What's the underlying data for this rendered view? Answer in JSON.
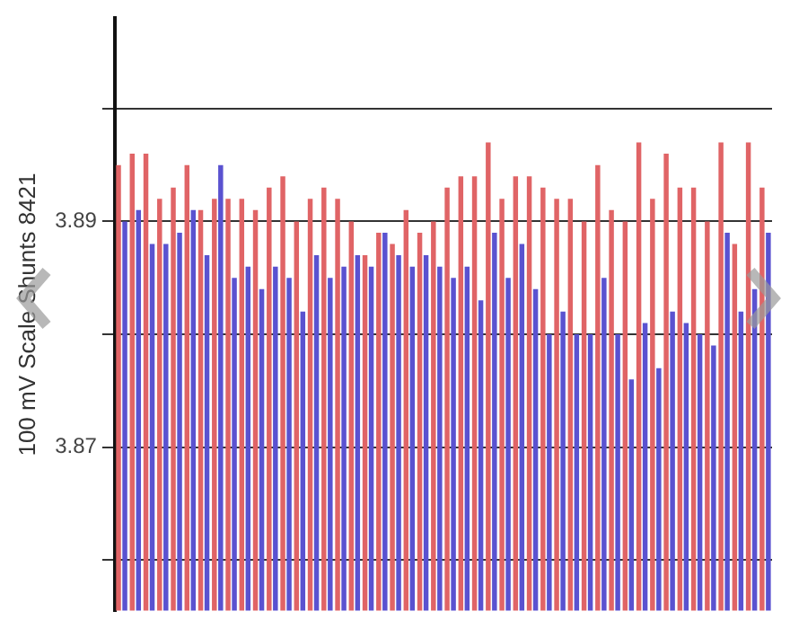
{
  "chart_data": {
    "type": "bar",
    "ylabel": "100 mV Scale Shunts 8421",
    "categories": [
      null,
      null,
      null,
      null,
      null,
      null,
      null,
      null,
      null,
      null,
      null,
      null,
      null,
      null,
      null,
      null,
      null,
      null,
      null,
      null,
      null,
      null,
      null,
      null,
      null,
      null,
      null,
      null,
      null,
      null,
      null,
      null,
      null,
      null,
      null,
      null,
      null,
      null,
      null,
      null,
      null,
      null,
      null,
      null,
      null,
      null,
      null,
      null
    ],
    "series": [
      {
        "color": "#e06466",
        "values": [
          3.895,
          3.896,
          3.896,
          3.892,
          3.893,
          3.895,
          3.891,
          3.892,
          3.892,
          3.892,
          3.891,
          3.893,
          3.894,
          3.89,
          3.892,
          3.893,
          3.892,
          3.89,
          3.887,
          3.889,
          3.888,
          3.891,
          3.889,
          3.89,
          3.893,
          3.894,
          3.894,
          3.897,
          3.892,
          3.894,
          3.894,
          3.893,
          3.892,
          3.892,
          3.89,
          3.895,
          3.891,
          3.89,
          3.897,
          3.892,
          3.896,
          3.893,
          3.893,
          3.89,
          3.897,
          3.888,
          3.897,
          3.893
        ]
      },
      {
        "color": "#5a52d0",
        "values": [
          3.89,
          3.891,
          3.888,
          3.888,
          3.889,
          3.891,
          3.887,
          3.895,
          3.885,
          3.886,
          3.884,
          3.886,
          3.885,
          3.882,
          3.887,
          3.885,
          3.886,
          3.887,
          3.886,
          3.889,
          3.887,
          3.886,
          3.887,
          3.886,
          3.885,
          3.886,
          3.883,
          3.889,
          3.885,
          3.888,
          3.884,
          3.88,
          3.882,
          3.88,
          3.88,
          3.885,
          3.88,
          3.876,
          3.881,
          3.877,
          3.882,
          3.881,
          3.88,
          3.879,
          3.889,
          3.882,
          3.884,
          3.889
        ]
      }
    ],
    "ylim": [
      3.8555,
      3.908
    ],
    "yticks": [
      {
        "value": 3.86,
        "label": null
      },
      3.87,
      {
        "value": 3.88,
        "label": null
      },
      3.89,
      {
        "value": 3.9,
        "label": null
      }
    ],
    "grid": "y",
    "tick_labels": "y"
  }
}
